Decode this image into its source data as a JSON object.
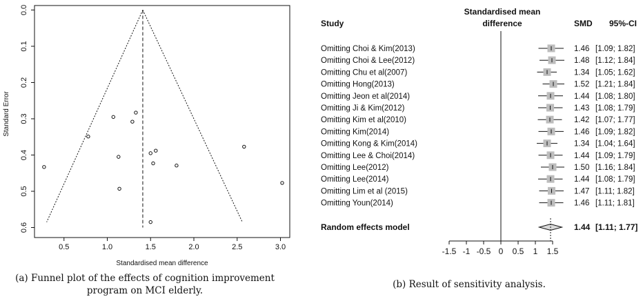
{
  "chart_data": [
    {
      "type": "scatter",
      "subtype": "funnel",
      "xlabel": "Standardised mean difference",
      "ylabel": "Standard Error",
      "xlim": [
        0.2,
        3.05
      ],
      "ylim": [
        0.0,
        0.6
      ],
      "y_reversed": true,
      "x_ticks": [
        0.5,
        1.0,
        1.5,
        2.0,
        2.5,
        3.0
      ],
      "x_tick_labels": [
        "0.5",
        "1.0",
        "1.5",
        "2.0",
        "2.5",
        "3.0"
      ],
      "y_ticks": [
        0.0,
        0.1,
        0.2,
        0.3,
        0.4,
        0.5,
        0.6
      ],
      "y_tick_labels": [
        "0.0",
        "0.1",
        "0.2",
        "0.3",
        "0.4",
        "0.5",
        "0.6"
      ],
      "pooled_estimate": 1.41,
      "funnel_limits": {
        "apex": [
          1.41,
          0.0
        ],
        "left_bottom": [
          0.3,
          0.585
        ],
        "right_bottom": [
          2.56,
          0.585
        ]
      },
      "points": [
        {
          "x": 0.27,
          "y": 0.433
        },
        {
          "x": 0.78,
          "y": 0.349
        },
        {
          "x": 1.07,
          "y": 0.295
        },
        {
          "x": 1.13,
          "y": 0.405
        },
        {
          "x": 1.14,
          "y": 0.493
        },
        {
          "x": 1.29,
          "y": 0.308
        },
        {
          "x": 1.33,
          "y": 0.283
        },
        {
          "x": 1.5,
          "y": 0.395
        },
        {
          "x": 1.53,
          "y": 0.423
        },
        {
          "x": 1.56,
          "y": 0.388
        },
        {
          "x": 1.8,
          "y": 0.429
        },
        {
          "x": 1.5,
          "y": 0.585
        },
        {
          "x": 2.58,
          "y": 0.377
        },
        {
          "x": 3.02,
          "y": 0.477
        }
      ],
      "grid": false
    },
    {
      "type": "forest",
      "headers": {
        "study": "Study",
        "effect": "Standardised mean difference",
        "smd": "SMD",
        "ci": "95%-CI"
      },
      "rows": [
        {
          "study": "Omitting Choi & Kim(2013)",
          "smd": 1.46,
          "lo": 1.09,
          "hi": 1.82,
          "smd_text": "1.46",
          "ci_text": "[1.09; 1.82]"
        },
        {
          "study": "Omitting Choi & Lee(2012)",
          "smd": 1.48,
          "lo": 1.12,
          "hi": 1.84,
          "smd_text": "1.48",
          "ci_text": "[1.12; 1.84]"
        },
        {
          "study": "Omitting Chu et al(2007)",
          "smd": 1.34,
          "lo": 1.05,
          "hi": 1.62,
          "smd_text": "1.34",
          "ci_text": "[1.05; 1.62]"
        },
        {
          "study": "Omitting Hong(2013)",
          "smd": 1.52,
          "lo": 1.21,
          "hi": 1.84,
          "smd_text": "1.52",
          "ci_text": "[1.21; 1.84]"
        },
        {
          "study": "Omitting Jeon et al(2014)",
          "smd": 1.44,
          "lo": 1.08,
          "hi": 1.8,
          "smd_text": "1.44",
          "ci_text": "[1.08; 1.80]"
        },
        {
          "study": "Omitting Ji & Kim(2012)",
          "smd": 1.43,
          "lo": 1.08,
          "hi": 1.79,
          "smd_text": "1.43",
          "ci_text": "[1.08; 1.79]"
        },
        {
          "study": "Omitting Kim et al(2010)",
          "smd": 1.42,
          "lo": 1.07,
          "hi": 1.77,
          "smd_text": "1.42",
          "ci_text": "[1.07; 1.77]"
        },
        {
          "study": "Omitting Kim(2014)",
          "smd": 1.46,
          "lo": 1.09,
          "hi": 1.82,
          "smd_text": "1.46",
          "ci_text": "[1.09; 1.82]"
        },
        {
          "study": "Omitting Kong & Kim(2014)",
          "smd": 1.34,
          "lo": 1.04,
          "hi": 1.64,
          "smd_text": "1.34",
          "ci_text": "[1.04; 1.64]"
        },
        {
          "study": "Omitting Lee & Choi(2014)",
          "smd": 1.44,
          "lo": 1.09,
          "hi": 1.79,
          "smd_text": "1.44",
          "ci_text": "[1.09; 1.79]"
        },
        {
          "study": "Omitting Lee(2012)",
          "smd": 1.5,
          "lo": 1.16,
          "hi": 1.84,
          "smd_text": "1.50",
          "ci_text": "[1.16; 1.84]"
        },
        {
          "study": "Omitting Lee(2014)",
          "smd": 1.44,
          "lo": 1.08,
          "hi": 1.79,
          "smd_text": "1.44",
          "ci_text": "[1.08; 1.79]"
        },
        {
          "study": "Omitting Lim et al (2015)",
          "smd": 1.47,
          "lo": 1.11,
          "hi": 1.82,
          "smd_text": "1.47",
          "ci_text": "[1.11; 1.82]"
        },
        {
          "study": "Omitting Youn(2014)",
          "smd": 1.46,
          "lo": 1.11,
          "hi": 1.81,
          "smd_text": "1.46",
          "ci_text": "[1.11; 1.81]"
        }
      ],
      "summary": {
        "study": "Random effects model",
        "smd": 1.44,
        "lo": 1.11,
        "hi": 1.77,
        "smd_text": "1.44",
        "ci_text": "[1.11; 1.77]"
      },
      "xlim": [
        -1.5,
        1.5
      ],
      "x_ticks": [
        -1.5,
        -1.0,
        -0.5,
        0.0,
        0.5,
        1.0,
        1.5
      ],
      "x_tick_labels": [
        "-1.5",
        "-1",
        "-0.5",
        "0",
        "0.5",
        "1",
        "1.5"
      ],
      "null_line": 0.0
    }
  ],
  "captions": {
    "a_line1": "(a) Funnel plot of the effects of cognition improvement",
    "a_line2": "program on MCI elderly.",
    "b": "(b) Result of sensitivity analysis."
  },
  "colors": {
    "ink": "#111111",
    "square": "#bdbdbd"
  }
}
